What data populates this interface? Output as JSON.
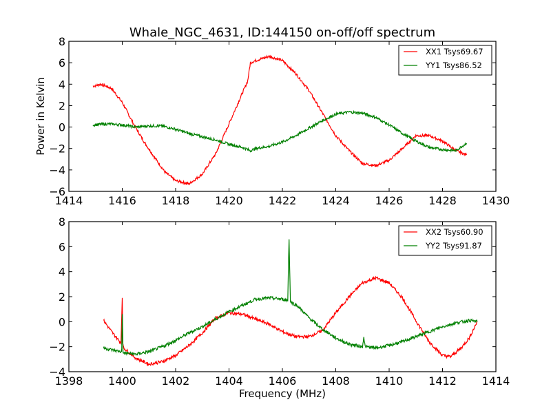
{
  "title": "Whale_NGC_4631, ID:144150 on-off/off spectrum",
  "chart_data": [
    {
      "type": "line",
      "panel": "top",
      "title": "Whale_NGC_4631, ID:144150 on-off/off spectrum",
      "xlabel": "",
      "ylabel": "Power in Kelvin",
      "xlim": [
        1414,
        1430
      ],
      "ylim": [
        -6,
        8
      ],
      "xticks": [
        "1414",
        "1416",
        "1418",
        "1420",
        "1422",
        "1424",
        "1426",
        "1428",
        "1430"
      ],
      "yticks": [
        "8",
        "6",
        "4",
        "2",
        "0",
        "−2",
        "−4",
        "−6"
      ],
      "legend_position": "top-right",
      "grid": false,
      "series": [
        {
          "name": "XX1 Tsys69.67",
          "color": "#ff0000",
          "x": [
            1414.9,
            1415.2,
            1415.6,
            1416.0,
            1416.4,
            1416.8,
            1417.2,
            1417.6,
            1418.0,
            1418.5,
            1419.0,
            1419.5,
            1420.0,
            1420.4,
            1420.7,
            1420.8,
            1421.0,
            1421.5,
            1422.0,
            1422.5,
            1423.0,
            1423.5,
            1424.0,
            1424.5,
            1425.0,
            1425.5,
            1426.0,
            1426.5,
            1427.0,
            1427.5,
            1428.0,
            1428.5,
            1428.9
          ],
          "y": [
            3.8,
            4.0,
            3.6,
            2.3,
            0.4,
            -1.3,
            -2.8,
            -4.2,
            -5.0,
            -5.3,
            -4.4,
            -2.5,
            0.3,
            2.6,
            4.3,
            6.0,
            6.2,
            6.6,
            6.2,
            5.0,
            3.4,
            1.3,
            -0.8,
            -2.2,
            -3.4,
            -3.6,
            -3.1,
            -2.0,
            -0.8,
            -0.8,
            -1.3,
            -2.2,
            -2.6
          ]
        },
        {
          "name": "YY1 Tsys86.52",
          "color": "#008000",
          "x": [
            1414.9,
            1415.5,
            1416.0,
            1416.5,
            1417.0,
            1417.5,
            1418.0,
            1418.5,
            1419.0,
            1419.5,
            1420.0,
            1420.5,
            1420.8,
            1421.0,
            1421.5,
            1422.0,
            1422.5,
            1423.0,
            1423.5,
            1424.0,
            1424.5,
            1425.0,
            1425.5,
            1426.0,
            1426.5,
            1427.0,
            1427.5,
            1428.0,
            1428.5,
            1428.9
          ],
          "y": [
            0.2,
            0.3,
            0.2,
            0.0,
            0.1,
            0.1,
            -0.2,
            -0.6,
            -0.9,
            -1.2,
            -1.6,
            -1.9,
            -2.2,
            -2.0,
            -1.8,
            -1.4,
            -0.8,
            -0.1,
            0.6,
            1.2,
            1.4,
            1.3,
            0.9,
            0.2,
            -0.6,
            -1.3,
            -1.9,
            -2.1,
            -2.2,
            -1.5
          ]
        }
      ]
    },
    {
      "type": "line",
      "panel": "bottom",
      "xlabel": "Frequency (MHz)",
      "ylabel": "",
      "xlim": [
        1398,
        1414
      ],
      "ylim": [
        -4,
        8
      ],
      "xticks": [
        "1398",
        "1400",
        "1402",
        "1404",
        "1406",
        "1408",
        "1410",
        "1412",
        "1414"
      ],
      "yticks": [
        "8",
        "6",
        "4",
        "2",
        "0",
        "−2",
        "−4"
      ],
      "legend_position": "top-right",
      "grid": false,
      "series": [
        {
          "name": "XX2 Tsys60.90",
          "color": "#ff0000",
          "x": [
            1399.3,
            1399.6,
            1399.95,
            1400.0,
            1400.02,
            1400.05,
            1400.5,
            1401.0,
            1401.5,
            1402.0,
            1402.5,
            1403.0,
            1403.5,
            1404.0,
            1404.5,
            1405.0,
            1405.5,
            1406.0,
            1406.5,
            1407.0,
            1407.5,
            1408.0,
            1408.5,
            1409.0,
            1409.5,
            1410.0,
            1410.5,
            1411.0,
            1411.5,
            1412.0,
            1412.3,
            1412.7,
            1413.0,
            1413.3
          ],
          "y": [
            0.1,
            -0.8,
            -1.7,
            1.9,
            -1.7,
            -2.1,
            -2.9,
            -3.4,
            -3.2,
            -2.7,
            -1.9,
            -0.9,
            0.3,
            0.7,
            0.6,
            0.2,
            -0.2,
            -0.8,
            -1.2,
            -1.2,
            -0.7,
            0.7,
            2.0,
            3.1,
            3.5,
            3.1,
            1.9,
            0.1,
            -1.6,
            -2.7,
            -2.8,
            -2.1,
            -1.3,
            0.0
          ]
        },
        {
          "name": "YY2 Tsys91.87",
          "color": "#008000",
          "x": [
            1399.3,
            1399.7,
            1399.98,
            1400.0,
            1400.03,
            1400.5,
            1401.0,
            1401.5,
            1402.0,
            1402.5,
            1403.0,
            1403.5,
            1404.0,
            1404.5,
            1405.0,
            1405.5,
            1406.0,
            1406.2,
            1406.25,
            1406.3,
            1406.6,
            1407.0,
            1407.5,
            1408.0,
            1408.5,
            1409.0,
            1409.05,
            1409.1,
            1409.5,
            1410.0,
            1410.5,
            1411.0,
            1411.5,
            1412.0,
            1412.5,
            1413.0,
            1413.3
          ],
          "y": [
            -2.1,
            -2.3,
            -2.4,
            0.6,
            -2.5,
            -2.6,
            -2.4,
            -2.0,
            -1.5,
            -0.9,
            -0.4,
            0.2,
            0.8,
            1.3,
            1.8,
            1.9,
            1.8,
            1.7,
            6.7,
            1.6,
            1.2,
            0.3,
            -0.6,
            -1.3,
            -1.8,
            -2.0,
            -1.2,
            -2.0,
            -2.1,
            -1.9,
            -1.6,
            -1.2,
            -0.8,
            -0.4,
            -0.1,
            0.1,
            0.0
          ]
        }
      ]
    }
  ]
}
